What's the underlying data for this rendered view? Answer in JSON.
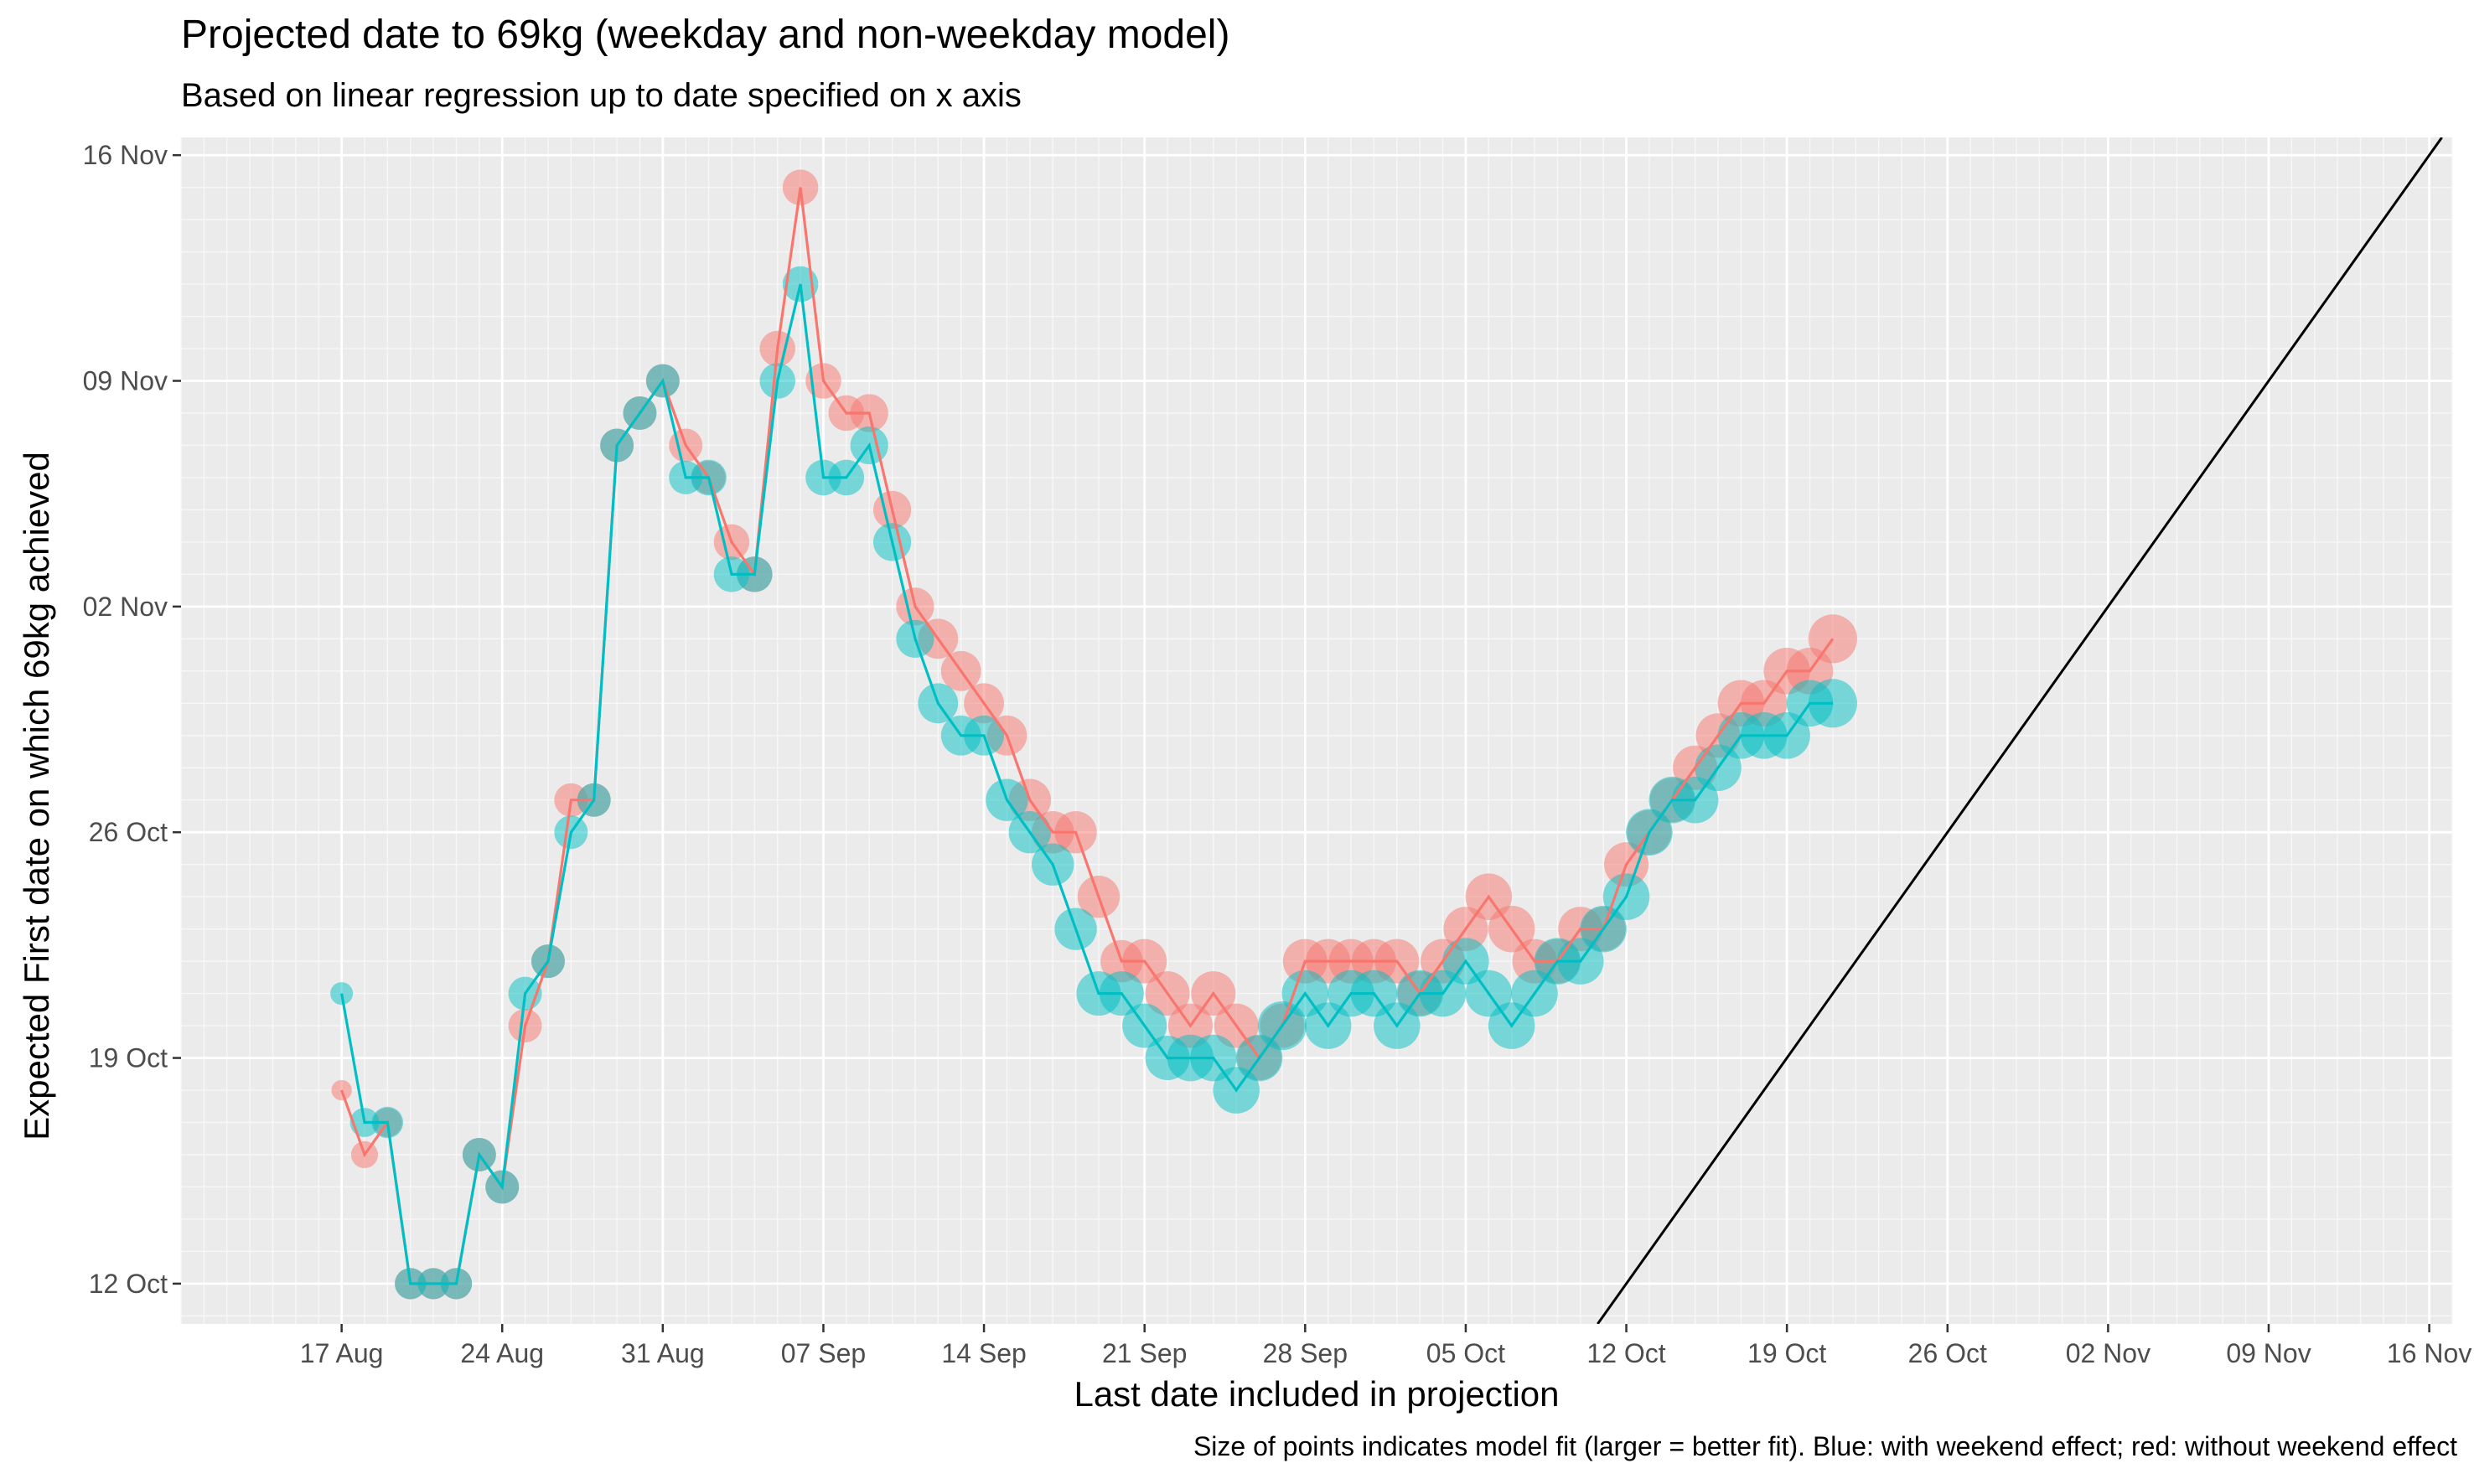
{
  "chart_data": {
    "type": "scatter",
    "title": "Projected date to 69kg (weekday and non-weekday model)",
    "subtitle": "Based on linear regression up to date specified on x axis",
    "xlabel": "Last date included in projection",
    "ylabel": "Expected First date on which 69kg achieved",
    "caption": "Size of points indicates model fit (larger = better fit). Blue: with weekend effect; red: without weekend effect",
    "x_ticks": [
      "17 Aug",
      "24 Aug",
      "31 Aug",
      "07 Sep",
      "14 Sep",
      "21 Sep",
      "28 Sep",
      "05 Oct",
      "12 Oct",
      "19 Oct",
      "26 Oct",
      "02 Nov",
      "09 Nov",
      "16 Nov"
    ],
    "y_ticks": [
      "12 Oct",
      "19 Oct",
      "26 Oct",
      "02 Nov",
      "09 Nov",
      "16 Nov"
    ],
    "xlim": [
      "10 Aug",
      "17 Nov"
    ],
    "ylim": [
      "11 Oct",
      "16 Nov"
    ],
    "grid": true,
    "legend": "none",
    "reference_line": {
      "description": "y = x",
      "color": "#000000"
    },
    "series": [
      {
        "color": "#F8766D",
        "x": [
          "17 Aug",
          "18 Aug",
          "19 Aug",
          "20 Aug",
          "21 Aug",
          "22 Aug",
          "23 Aug",
          "24 Aug",
          "25 Aug",
          "26 Aug",
          "27 Aug",
          "28 Aug",
          "29 Aug",
          "30 Aug",
          "31 Aug",
          "01 Sep",
          "02 Sep",
          "03 Sep",
          "04 Sep",
          "05 Sep",
          "06 Sep",
          "07 Sep",
          "08 Sep",
          "09 Sep",
          "10 Sep",
          "11 Sep",
          "12 Sep",
          "13 Sep",
          "14 Sep",
          "15 Sep",
          "16 Sep",
          "17 Sep",
          "18 Sep",
          "19 Sep",
          "20 Sep",
          "21 Sep",
          "22 Sep",
          "23 Sep",
          "24 Sep",
          "25 Sep",
          "26 Sep",
          "27 Sep",
          "28 Sep",
          "29 Sep",
          "30 Sep",
          "01 Oct",
          "02 Oct",
          "03 Oct",
          "04 Oct",
          "05 Oct",
          "06 Oct",
          "07 Oct",
          "08 Oct",
          "09 Oct",
          "10 Oct",
          "11 Oct",
          "12 Oct",
          "13 Oct",
          "14 Oct",
          "15 Oct",
          "16 Oct",
          "17 Oct",
          "18 Oct",
          "19 Oct",
          "20 Oct",
          "21 Oct"
        ],
        "y": [
          "18 Oct",
          "16 Oct",
          "17 Oct",
          "12 Oct",
          "12 Oct",
          "12 Oct",
          "16 Oct",
          "15 Oct",
          "20 Oct",
          "22 Oct",
          "27 Oct",
          "27 Oct",
          "07 Nov",
          "08 Nov",
          "09 Nov",
          "07 Nov",
          "06 Nov",
          "04 Nov",
          "03 Nov",
          "10 Nov",
          "15 Nov",
          "09 Nov",
          "08 Nov",
          "08 Nov",
          "05 Nov",
          "02 Nov",
          "01 Nov",
          "31 Oct",
          "30 Oct",
          "29 Oct",
          "27 Oct",
          "26 Oct",
          "26 Oct",
          "24 Oct",
          "22 Oct",
          "22 Oct",
          "21 Oct",
          "20 Oct",
          "21 Oct",
          "20 Oct",
          "19 Oct",
          "20 Oct",
          "22 Oct",
          "22 Oct",
          "22 Oct",
          "22 Oct",
          "22 Oct",
          "21 Oct",
          "22 Oct",
          "23 Oct",
          "24 Oct",
          "23 Oct",
          "22 Oct",
          "22 Oct",
          "23 Oct",
          "23 Oct",
          "25 Oct",
          "26 Oct",
          "27 Oct",
          "28 Oct",
          "29 Oct",
          "30 Oct",
          "30 Oct",
          "31 Oct",
          "31 Oct",
          "01 Nov"
        ],
        "fit": [
          0.2,
          0.35,
          0.4,
          0.45,
          0.45,
          0.45,
          0.5,
          0.5,
          0.5,
          0.5,
          0.5,
          0.5,
          0.5,
          0.5,
          0.5,
          0.5,
          0.5,
          0.55,
          0.55,
          0.55,
          0.55,
          0.55,
          0.55,
          0.6,
          0.6,
          0.6,
          0.65,
          0.65,
          0.65,
          0.65,
          0.7,
          0.7,
          0.7,
          0.7,
          0.7,
          0.75,
          0.75,
          0.75,
          0.75,
          0.75,
          0.75,
          0.75,
          0.75,
          0.75,
          0.75,
          0.75,
          0.75,
          0.75,
          0.75,
          0.75,
          0.8,
          0.8,
          0.75,
          0.75,
          0.75,
          0.75,
          0.75,
          0.75,
          0.75,
          0.75,
          0.75,
          0.8,
          0.8,
          0.8,
          0.8,
          0.85
        ]
      },
      {
        "color": "#00BFC4",
        "x": [
          "17 Aug",
          "18 Aug",
          "19 Aug",
          "20 Aug",
          "21 Aug",
          "22 Aug",
          "23 Aug",
          "24 Aug",
          "25 Aug",
          "26 Aug",
          "27 Aug",
          "28 Aug",
          "29 Aug",
          "30 Aug",
          "31 Aug",
          "01 Sep",
          "02 Sep",
          "03 Sep",
          "04 Sep",
          "05 Sep",
          "06 Sep",
          "07 Sep",
          "08 Sep",
          "09 Sep",
          "10 Sep",
          "11 Sep",
          "12 Sep",
          "13 Sep",
          "14 Sep",
          "15 Sep",
          "16 Sep",
          "17 Sep",
          "18 Sep",
          "19 Sep",
          "20 Sep",
          "21 Sep",
          "22 Sep",
          "23 Sep",
          "24 Sep",
          "25 Sep",
          "26 Sep",
          "27 Sep",
          "28 Sep",
          "29 Sep",
          "30 Sep",
          "01 Oct",
          "02 Oct",
          "03 Oct",
          "04 Oct",
          "05 Oct",
          "06 Oct",
          "07 Oct",
          "08 Oct",
          "09 Oct",
          "10 Oct",
          "11 Oct",
          "12 Oct",
          "13 Oct",
          "14 Oct",
          "15 Oct",
          "16 Oct",
          "17 Oct",
          "18 Oct",
          "19 Oct",
          "20 Oct",
          "21 Oct"
        ],
        "y": [
          "21 Oct",
          "17 Oct",
          "17 Oct",
          "12 Oct",
          "12 Oct",
          "12 Oct",
          "16 Oct",
          "15 Oct",
          "21 Oct",
          "22 Oct",
          "26 Oct",
          "27 Oct",
          "07 Nov",
          "08 Nov",
          "09 Nov",
          "06 Nov",
          "06 Nov",
          "03 Nov",
          "03 Nov",
          "09 Nov",
          "12 Nov",
          "06 Nov",
          "06 Nov",
          "07 Nov",
          "04 Nov",
          "01 Nov",
          "30 Oct",
          "29 Oct",
          "29 Oct",
          "27 Oct",
          "26 Oct",
          "25 Oct",
          "23 Oct",
          "21 Oct",
          "21 Oct",
          "20 Oct",
          "19 Oct",
          "19 Oct",
          "19 Oct",
          "18 Oct",
          "19 Oct",
          "20 Oct",
          "21 Oct",
          "20 Oct",
          "21 Oct",
          "21 Oct",
          "20 Oct",
          "21 Oct",
          "21 Oct",
          "22 Oct",
          "21 Oct",
          "20 Oct",
          "21 Oct",
          "22 Oct",
          "22 Oct",
          "23 Oct",
          "24 Oct",
          "26 Oct",
          "27 Oct",
          "27 Oct",
          "28 Oct",
          "29 Oct",
          "29 Oct",
          "29 Oct",
          "30 Oct",
          "30 Oct"
        ],
        "fit": [
          0.25,
          0.4,
          0.45,
          0.45,
          0.45,
          0.45,
          0.5,
          0.5,
          0.5,
          0.5,
          0.5,
          0.5,
          0.5,
          0.5,
          0.5,
          0.5,
          0.55,
          0.55,
          0.55,
          0.55,
          0.55,
          0.55,
          0.55,
          0.6,
          0.6,
          0.6,
          0.65,
          0.65,
          0.65,
          0.7,
          0.7,
          0.7,
          0.7,
          0.75,
          0.75,
          0.75,
          0.75,
          0.8,
          0.8,
          0.8,
          0.8,
          0.85,
          0.8,
          0.8,
          0.8,
          0.8,
          0.8,
          0.8,
          0.8,
          0.8,
          0.8,
          0.8,
          0.8,
          0.8,
          0.8,
          0.8,
          0.8,
          0.8,
          0.8,
          0.8,
          0.8,
          0.8,
          0.8,
          0.8,
          0.8,
          0.85
        ]
      }
    ]
  }
}
